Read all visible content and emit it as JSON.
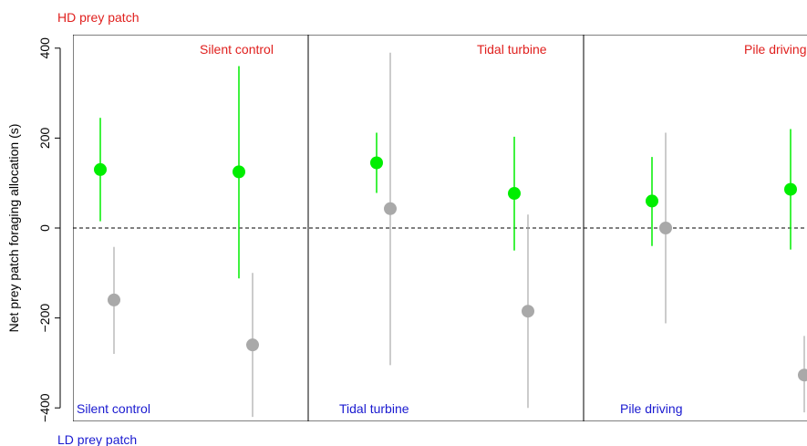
{
  "chart_data": {
    "type": "scatter",
    "subtype": "point-range",
    "ylabel": "Net prey patch foraging allocation (s)",
    "ylim": [
      -430,
      430
    ],
    "yticks": [
      -400,
      -200,
      0,
      200,
      400
    ],
    "top_note": "HD prey patch",
    "bottom_note": "LD prey patch",
    "reference_line": 0,
    "colors": {
      "green": "#00ee00",
      "grey": "#a9a9a9",
      "red_text": "#e0201e",
      "blue_text": "#1a1ad0",
      "axis": "#000000"
    },
    "panels": [
      {
        "top_label": "Silent control",
        "bottom_label": "Silent control",
        "points": [
          {
            "series": "green",
            "x": 1,
            "y": 130,
            "low": 15,
            "high": 245
          },
          {
            "series": "grey",
            "x": 1,
            "y": -160,
            "low": -280,
            "high": -42
          },
          {
            "series": "green",
            "x": 2,
            "y": 125,
            "low": -112,
            "high": 360
          },
          {
            "series": "grey",
            "x": 2,
            "y": -260,
            "low": -420,
            "high": -100
          }
        ]
      },
      {
        "top_label": "Tidal turbine",
        "bottom_label": "Tidal turbine",
        "points": [
          {
            "series": "green",
            "x": 1,
            "y": 145,
            "low": 78,
            "high": 212
          },
          {
            "series": "grey",
            "x": 1,
            "y": 43,
            "low": -305,
            "high": 390
          },
          {
            "series": "green",
            "x": 2,
            "y": 77,
            "low": -50,
            "high": 203
          },
          {
            "series": "grey",
            "x": 2,
            "y": -185,
            "low": -400,
            "high": 30
          }
        ]
      },
      {
        "top_label": "Pile driving",
        "bottom_label": "Pile driving",
        "points": [
          {
            "series": "green",
            "x": 1,
            "y": 60,
            "low": -40,
            "high": 158
          },
          {
            "series": "grey",
            "x": 1,
            "y": 0,
            "low": -212,
            "high": 212
          },
          {
            "series": "green",
            "x": 2,
            "y": 86,
            "low": -48,
            "high": 220
          },
          {
            "series": "grey",
            "x": 2,
            "y": -327,
            "low": -410,
            "high": -240
          }
        ]
      }
    ]
  }
}
